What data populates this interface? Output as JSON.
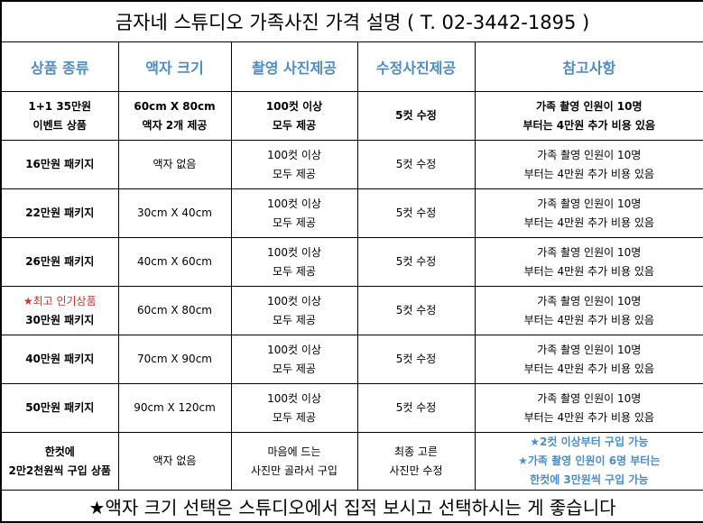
{
  "title": "금자네 스튜디오 가족사진 가격 설명 ( T. 02-3442-1895 )",
  "table": {
    "headers": [
      "상품 종류",
      "액자 크기",
      "촬영 사진제공",
      "수정사진제공",
      "참고사항"
    ],
    "rows": [
      [
        [
          "1+1  35만원",
          "이벤트 상품"
        ],
        [
          "60cm X 80cm",
          "액자 2개 제공"
        ],
        [
          "100컷 이상",
          "모두 제공"
        ],
        [
          "5컷 수정"
        ],
        [
          "가족 촬영 인원이 10명",
          "부터는 4만원 추가 비용 있음"
        ]
      ],
      [
        [
          "16만원 패키지"
        ],
        [
          "액자 없음"
        ],
        [
          "100컷 이상",
          "모두 제공"
        ],
        [
          "5컷 수정"
        ],
        [
          "가족 촬영 인원이 10명",
          "부터는 4만원 추가 비용 있음"
        ]
      ],
      [
        [
          "22만원 패키지"
        ],
        [
          "30cm X 40cm"
        ],
        [
          "100컷 이상",
          "모두 제공"
        ],
        [
          "5컷 수정"
        ],
        [
          "가족 촬영 인원이 10명",
          "부터는 4만원 추가 비용 있음"
        ]
      ],
      [
        [
          "26만원 패키지"
        ],
        [
          "40cm X 60cm"
        ],
        [
          "100컷 이상",
          "모두 제공"
        ],
        [
          "5컷 수정"
        ],
        [
          "가족 촬영 인원이 10명",
          "부터는 4만원 추가 비용 있음"
        ]
      ],
      [
        [
          "★최고 인기상품",
          "30만원 패키지"
        ],
        [
          "60cm X 80cm"
        ],
        [
          "100컷 이상",
          "모두 제공"
        ],
        [
          "5컷 수정"
        ],
        [
          "가족 촬영 인원이 10명",
          "부터는 4만원 추가 비용 있음"
        ]
      ],
      [
        [
          "40만원 패키지"
        ],
        [
          "70cm X 90cm"
        ],
        [
          "100컷 이상",
          "모두 제공"
        ],
        [
          "5컷 수정"
        ],
        [
          "가족 촬영 인원이 10명",
          "부터는 4만원 추가 비용 있음"
        ]
      ],
      [
        [
          "50만원 패키지"
        ],
        [
          "90cm X 120cm"
        ],
        [
          "100컷 이상",
          "모두 제공"
        ],
        [
          "5컷 수정"
        ],
        [
          "가족 촬영 인원이 10명",
          "부터는 4만원 추가 비용 있음"
        ]
      ],
      [
        [
          "한컷에",
          "2만2천원씩 구입 상품"
        ],
        [
          "액자 없음"
        ],
        [
          "마음에 드는",
          "사진만 골라서 구입"
        ],
        [
          "최종 고른",
          "사진만 수정"
        ],
        [
          "★2컷 이상부터 구입 가능",
          "★가족 촬영 인원이 6명 부터는",
          "한컷에 3만원씩 구입 가능"
        ]
      ]
    ]
  },
  "footer": "★액자 크기 선택은 스튜디오에서 집적 보시고 선택하시는 게 좋습니다"
}
